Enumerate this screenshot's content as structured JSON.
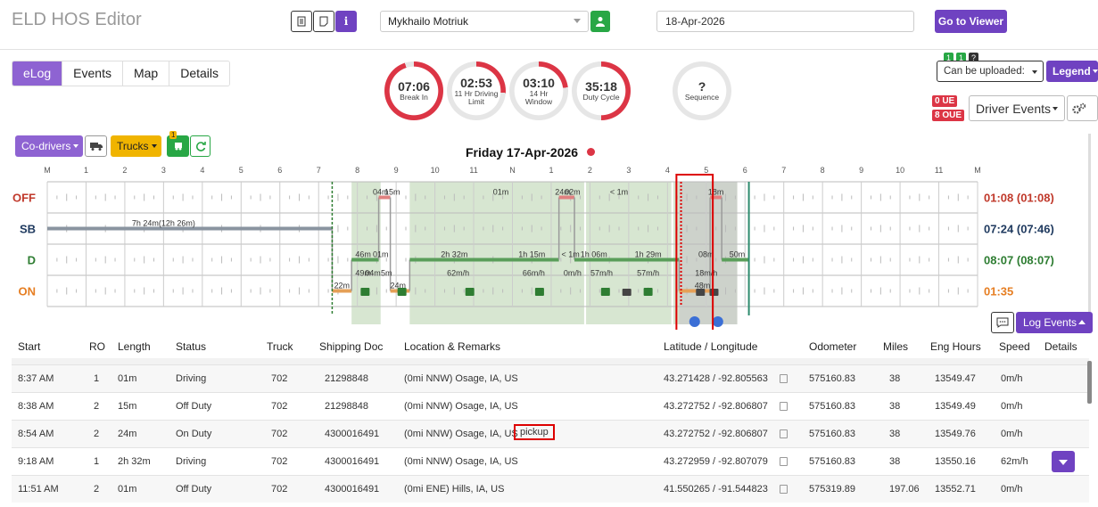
{
  "header": {
    "title": "ELD HOS Editor",
    "driver": "Mykhailo Motriuk",
    "date": "18-Apr-2026",
    "go_viewer": "Go to Viewer"
  },
  "tabs": [
    "eLog",
    "Events",
    "Map",
    "Details"
  ],
  "gauges": [
    {
      "value": "07:06",
      "label": "Break In",
      "color": "#dc3545",
      "progress": 0.95
    },
    {
      "value": "02:53",
      "label": "11 Hr Driving Limit",
      "color": "#dc3545",
      "progress": 0.26
    },
    {
      "value": "03:10",
      "label": "14 Hr Window",
      "color": "#dc3545",
      "progress": 0.23
    },
    {
      "value": "35:18",
      "label": "Duty Cycle",
      "color": "#dc3545",
      "progress": 0.5
    },
    {
      "value": "?",
      "label": "Sequence",
      "color": "#ddd",
      "progress": 0
    }
  ],
  "right_top": {
    "badge1": "1",
    "badge2": "1",
    "badge3": "?",
    "upload": "Can be uploaded:",
    "legend": "Legend",
    "ue": "0 UE",
    "oue": "8 OUE",
    "driver_events": "Driver Events"
  },
  "toolbar": {
    "codrivers": "Co-drivers",
    "trucks": "Trucks",
    "notif": "1",
    "log_events": "Log Events"
  },
  "chart": {
    "day_title": "Friday 17-Apr-2026",
    "hours": [
      "M",
      "1",
      "2",
      "3",
      "4",
      "5",
      "6",
      "7",
      "8",
      "9",
      "10",
      "11",
      "N",
      "1",
      "2",
      "3",
      "4",
      "5",
      "6",
      "7",
      "8",
      "9",
      "10",
      "11",
      "M"
    ],
    "rows": [
      {
        "label": "OFF",
        "color": "#c0392b",
        "total": "01:08 (01:08)"
      },
      {
        "label": "SB",
        "color": "#1f3a5f",
        "total": "07:24 (07:46)"
      },
      {
        "label": "D",
        "color": "#2e7d32",
        "total": "08:07 (08:07)"
      },
      {
        "label": "ON",
        "color": "#e67e22",
        "total": "01:35"
      }
    ],
    "annotations": [
      {
        "text": "7h 24m(12h 26m)",
        "row": 1,
        "hour": 3.0
      },
      {
        "text": "04m",
        "row": 0,
        "hour": 8.6
      },
      {
        "text": "15m",
        "row": 0,
        "hour": 8.9
      },
      {
        "text": "01m",
        "row": 0,
        "hour": 11.7
      },
      {
        "text": "24m",
        "row": 0,
        "hour": 13.3
      },
      {
        "text": "02m",
        "row": 0,
        "hour": 13.55
      },
      {
        "text": "< 1m",
        "row": 0,
        "hour": 14.75
      },
      {
        "text": "18m",
        "row": 0,
        "hour": 17.25
      },
      {
        "text": "46m",
        "row": 2,
        "hour": 8.15
      },
      {
        "text": "01m",
        "row": 2,
        "hour": 8.6
      },
      {
        "text": "2h 32m",
        "row": 2,
        "hour": 10.5
      },
      {
        "text": "1h 15m",
        "row": 2,
        "hour": 12.5
      },
      {
        "text": "< 1m",
        "row": 2,
        "hour": 13.5
      },
      {
        "text": "1h 06m",
        "row": 2,
        "hour": 14.1
      },
      {
        "text": "1h 29m",
        "row": 2,
        "hour": 15.5
      },
      {
        "text": "08m",
        "row": 2,
        "hour": 17.0
      },
      {
        "text": "50m",
        "row": 2,
        "hour": 17.8
      },
      {
        "text": "49m",
        "row": 2.6,
        "hour": 8.15
      },
      {
        "text": "04m",
        "row": 2.6,
        "hour": 8.4
      },
      {
        "text": "5m",
        "row": 2.6,
        "hour": 8.75
      },
      {
        "text": "62m/h",
        "row": 2.6,
        "hour": 10.6
      },
      {
        "text": "66m/h",
        "row": 2.6,
        "hour": 12.55
      },
      {
        "text": "0m/h",
        "row": 2.6,
        "hour": 13.55
      },
      {
        "text": "57m/h",
        "row": 2.6,
        "hour": 14.3
      },
      {
        "text": "57m/h",
        "row": 2.6,
        "hour": 15.5
      },
      {
        "text": "18m/h",
        "row": 2.6,
        "hour": 17.0
      },
      {
        "text": "22m",
        "row": 3,
        "hour": 7.6
      },
      {
        "text": "24m",
        "row": 3,
        "hour": 9.05
      },
      {
        "text": "48m",
        "row": 3,
        "hour": 16.9
      }
    ]
  },
  "table": {
    "headers": [
      "Start",
      "RO",
      "Length",
      "Status",
      "Truck",
      "Shipping Doc",
      "Location & Remarks",
      "Latitude / Longitude",
      "Odometer",
      "Miles",
      "Eng Hours",
      "Speed",
      "Details"
    ],
    "rows": [
      [
        "8:37 AM",
        "1",
        "01m",
        "Driving",
        "702",
        "21298848",
        "(0mi NNW) Osage, IA, US",
        "",
        "43.271428 / -92.805563",
        "575160.83",
        "38",
        "13549.47",
        "0m/h"
      ],
      [
        "8:38 AM",
        "2",
        "15m",
        "Off Duty",
        "702",
        "21298848",
        "(0mi NNW) Osage, IA, US",
        "",
        "43.272752 / -92.806807",
        "575160.83",
        "38",
        "13549.49",
        "0m/h"
      ],
      [
        "8:54 AM",
        "2",
        "24m",
        "On Duty",
        "702",
        "4300016491",
        "(0mi NNW) Osage, IA, US",
        "pickup",
        "43.272752 / -92.806807",
        "575160.83",
        "38",
        "13549.76",
        "0m/h"
      ],
      [
        "9:18 AM",
        "1",
        "2h 32m",
        "Driving",
        "702",
        "4300016491",
        "(0mi NNW) Osage, IA, US",
        "",
        "43.272959 / -92.807079",
        "575160.83",
        "38",
        "13550.16",
        "62m/h"
      ],
      [
        "11:51 AM",
        "2",
        "01m",
        "Off Duty",
        "702",
        "4300016491",
        "(0mi ENE) Hills, IA, US",
        "",
        "41.550265 / -91.544823",
        "575319.89",
        "197.06",
        "13552.71",
        "0m/h"
      ]
    ]
  }
}
